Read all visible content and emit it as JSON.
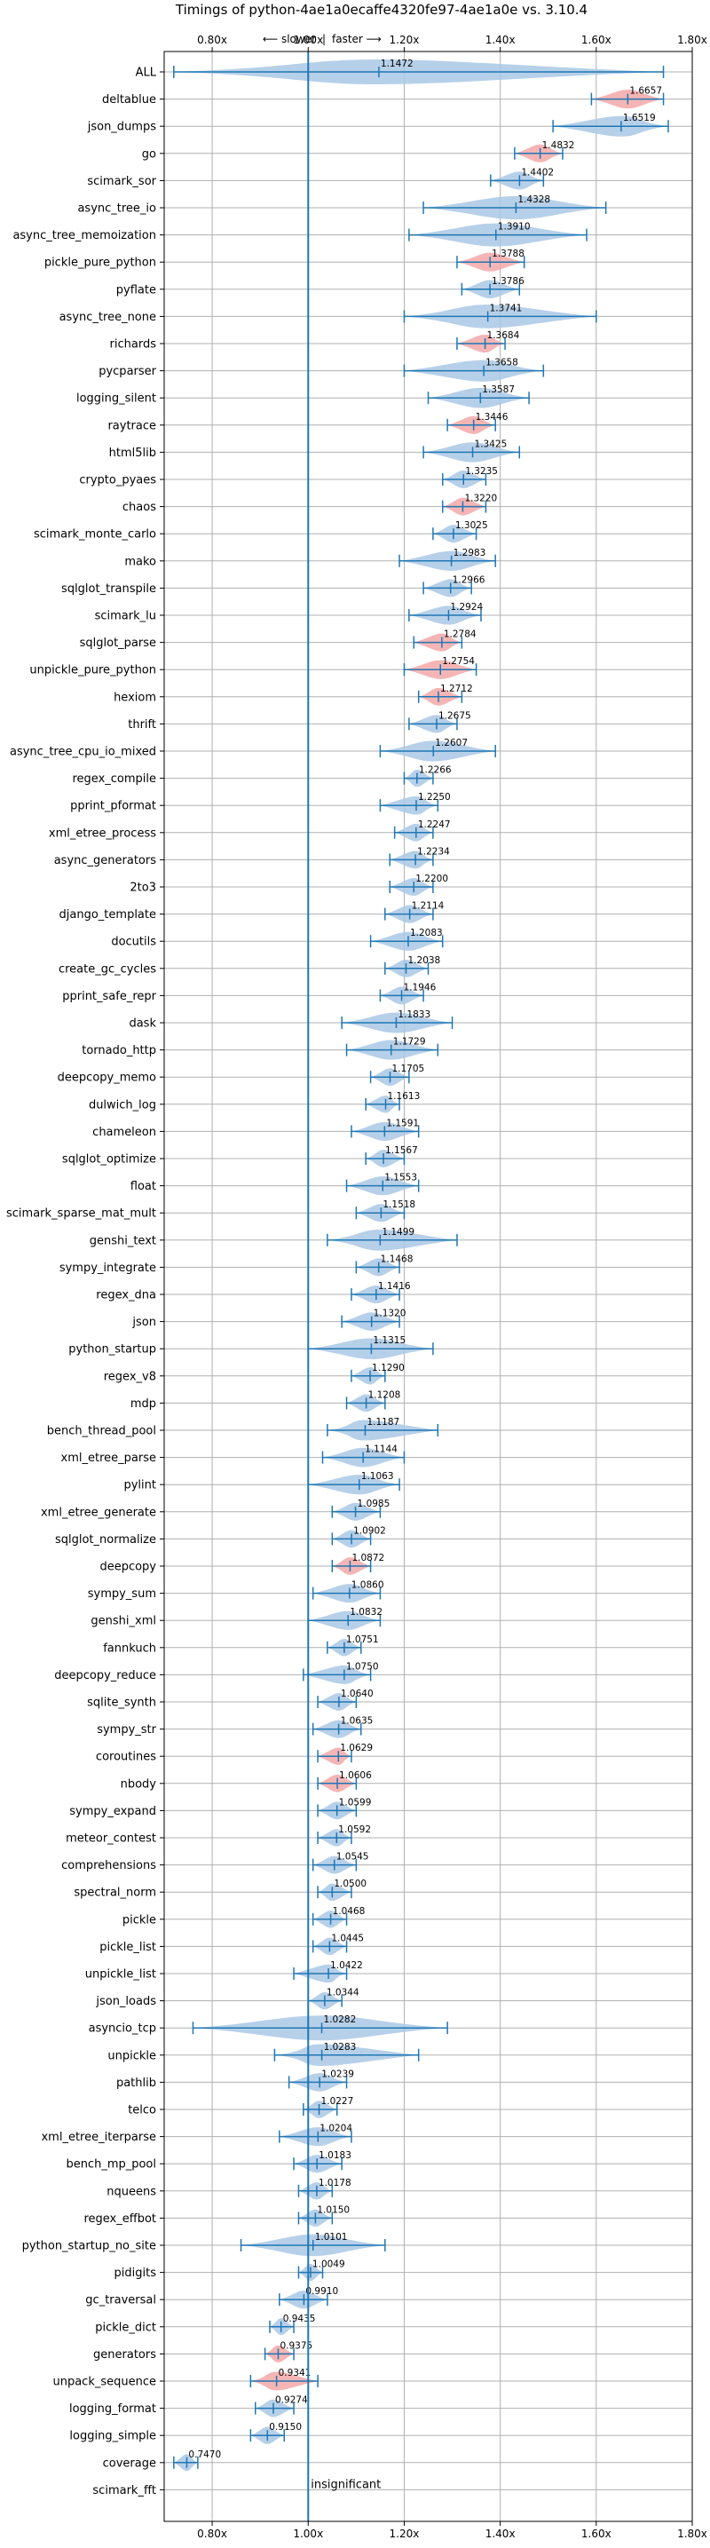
{
  "chart_data": {
    "type": "violin",
    "title": "Timings of python-4ae1a0ecaffe4320fe97-4ae1a0e vs. 3.10.4",
    "x_ticks": [
      "0.80x",
      "1.00x",
      "1.20x",
      "1.40x",
      "1.60x",
      "1.80x"
    ],
    "x_tick_values": [
      0.8,
      1.0,
      1.2,
      1.4,
      1.6,
      1.8
    ],
    "xlim": [
      0.7,
      1.8
    ],
    "slower_label": "⟵ slower",
    "faster_label": "faster ⟶",
    "separator": "|",
    "insignificant_label": "insignificant",
    "grid": true,
    "colors": {
      "faster": "#aac8e5",
      "slower": "#f3a8a8",
      "line": "#1f77b4"
    },
    "benchmarks": [
      {
        "name": "ALL",
        "value": "1.1472",
        "mean": 1.1472,
        "lo": 0.72,
        "hi": 1.74,
        "slower": false
      },
      {
        "name": "deltablue",
        "value": "1.6657",
        "mean": 1.6657,
        "lo": 1.59,
        "hi": 1.74,
        "slower": true
      },
      {
        "name": "json_dumps",
        "value": "1.6519",
        "mean": 1.6519,
        "lo": 1.51,
        "hi": 1.75,
        "slower": false
      },
      {
        "name": "go",
        "value": "1.4832",
        "mean": 1.4832,
        "lo": 1.43,
        "hi": 1.53,
        "slower": true
      },
      {
        "name": "scimark_sor",
        "value": "1.4402",
        "mean": 1.4402,
        "lo": 1.38,
        "hi": 1.49,
        "slower": false
      },
      {
        "name": "async_tree_io",
        "value": "1.4328",
        "mean": 1.4328,
        "lo": 1.24,
        "hi": 1.62,
        "slower": false
      },
      {
        "name": "async_tree_memoization",
        "value": "1.3910",
        "mean": 1.391,
        "lo": 1.21,
        "hi": 1.58,
        "slower": false
      },
      {
        "name": "pickle_pure_python",
        "value": "1.3788",
        "mean": 1.3788,
        "lo": 1.31,
        "hi": 1.45,
        "slower": true
      },
      {
        "name": "pyflate",
        "value": "1.3786",
        "mean": 1.3786,
        "lo": 1.32,
        "hi": 1.44,
        "slower": false
      },
      {
        "name": "async_tree_none",
        "value": "1.3741",
        "mean": 1.3741,
        "lo": 1.2,
        "hi": 1.6,
        "slower": false
      },
      {
        "name": "richards",
        "value": "1.3684",
        "mean": 1.3684,
        "lo": 1.31,
        "hi": 1.41,
        "slower": true
      },
      {
        "name": "pycparser",
        "value": "1.3658",
        "mean": 1.3658,
        "lo": 1.2,
        "hi": 1.49,
        "slower": false
      },
      {
        "name": "logging_silent",
        "value": "1.3587",
        "mean": 1.3587,
        "lo": 1.25,
        "hi": 1.46,
        "slower": false
      },
      {
        "name": "raytrace",
        "value": "1.3446",
        "mean": 1.3446,
        "lo": 1.29,
        "hi": 1.39,
        "slower": true
      },
      {
        "name": "html5lib",
        "value": "1.3425",
        "mean": 1.3425,
        "lo": 1.24,
        "hi": 1.44,
        "slower": false
      },
      {
        "name": "crypto_pyaes",
        "value": "1.3235",
        "mean": 1.3235,
        "lo": 1.28,
        "hi": 1.37,
        "slower": false
      },
      {
        "name": "chaos",
        "value": "1.3220",
        "mean": 1.322,
        "lo": 1.28,
        "hi": 1.37,
        "slower": true
      },
      {
        "name": "scimark_monte_carlo",
        "value": "1.3025",
        "mean": 1.3025,
        "lo": 1.26,
        "hi": 1.35,
        "slower": false
      },
      {
        "name": "mako",
        "value": "1.2983",
        "mean": 1.2983,
        "lo": 1.19,
        "hi": 1.39,
        "slower": false
      },
      {
        "name": "sqlglot_transpile",
        "value": "1.2966",
        "mean": 1.2966,
        "lo": 1.24,
        "hi": 1.34,
        "slower": false
      },
      {
        "name": "scimark_lu",
        "value": "1.2924",
        "mean": 1.2924,
        "lo": 1.21,
        "hi": 1.36,
        "slower": false
      },
      {
        "name": "sqlglot_parse",
        "value": "1.2784",
        "mean": 1.2784,
        "lo": 1.22,
        "hi": 1.32,
        "slower": true
      },
      {
        "name": "unpickle_pure_python",
        "value": "1.2754",
        "mean": 1.2754,
        "lo": 1.2,
        "hi": 1.35,
        "slower": true
      },
      {
        "name": "hexiom",
        "value": "1.2712",
        "mean": 1.2712,
        "lo": 1.23,
        "hi": 1.32,
        "slower": true
      },
      {
        "name": "thrift",
        "value": "1.2675",
        "mean": 1.2675,
        "lo": 1.21,
        "hi": 1.31,
        "slower": false
      },
      {
        "name": "async_tree_cpu_io_mixed",
        "value": "1.2607",
        "mean": 1.2607,
        "lo": 1.15,
        "hi": 1.39,
        "slower": false
      },
      {
        "name": "regex_compile",
        "value": "1.2266",
        "mean": 1.2266,
        "lo": 1.2,
        "hi": 1.26,
        "slower": false
      },
      {
        "name": "pprint_pformat",
        "value": "1.2250",
        "mean": 1.225,
        "lo": 1.15,
        "hi": 1.27,
        "slower": false
      },
      {
        "name": "xml_etree_process",
        "value": "1.2247",
        "mean": 1.2247,
        "lo": 1.18,
        "hi": 1.26,
        "slower": false
      },
      {
        "name": "async_generators",
        "value": "1.2234",
        "mean": 1.2234,
        "lo": 1.17,
        "hi": 1.26,
        "slower": false
      },
      {
        "name": "2to3",
        "value": "1.2200",
        "mean": 1.22,
        "lo": 1.17,
        "hi": 1.26,
        "slower": false
      },
      {
        "name": "django_template",
        "value": "1.2114",
        "mean": 1.2114,
        "lo": 1.16,
        "hi": 1.26,
        "slower": false
      },
      {
        "name": "docutils",
        "value": "1.2083",
        "mean": 1.2083,
        "lo": 1.13,
        "hi": 1.28,
        "slower": false
      },
      {
        "name": "create_gc_cycles",
        "value": "1.2038",
        "mean": 1.2038,
        "lo": 1.16,
        "hi": 1.25,
        "slower": false
      },
      {
        "name": "pprint_safe_repr",
        "value": "1.1946",
        "mean": 1.1946,
        "lo": 1.15,
        "hi": 1.24,
        "slower": false
      },
      {
        "name": "dask",
        "value": "1.1833",
        "mean": 1.1833,
        "lo": 1.07,
        "hi": 1.3,
        "slower": false
      },
      {
        "name": "tornado_http",
        "value": "1.1729",
        "mean": 1.1729,
        "lo": 1.08,
        "hi": 1.27,
        "slower": false
      },
      {
        "name": "deepcopy_memo",
        "value": "1.1705",
        "mean": 1.1705,
        "lo": 1.13,
        "hi": 1.21,
        "slower": false
      },
      {
        "name": "dulwich_log",
        "value": "1.1613",
        "mean": 1.1613,
        "lo": 1.12,
        "hi": 1.19,
        "slower": false
      },
      {
        "name": "chameleon",
        "value": "1.1591",
        "mean": 1.1591,
        "lo": 1.09,
        "hi": 1.23,
        "slower": false
      },
      {
        "name": "sqlglot_optimize",
        "value": "1.1567",
        "mean": 1.1567,
        "lo": 1.12,
        "hi": 1.2,
        "slower": false
      },
      {
        "name": "float",
        "value": "1.1553",
        "mean": 1.1553,
        "lo": 1.08,
        "hi": 1.23,
        "slower": false
      },
      {
        "name": "scimark_sparse_mat_mult",
        "value": "1.1518",
        "mean": 1.1518,
        "lo": 1.1,
        "hi": 1.2,
        "slower": false
      },
      {
        "name": "genshi_text",
        "value": "1.1499",
        "mean": 1.1499,
        "lo": 1.04,
        "hi": 1.31,
        "slower": false
      },
      {
        "name": "sympy_integrate",
        "value": "1.1468",
        "mean": 1.1468,
        "lo": 1.1,
        "hi": 1.19,
        "slower": false
      },
      {
        "name": "regex_dna",
        "value": "1.1416",
        "mean": 1.1416,
        "lo": 1.09,
        "hi": 1.19,
        "slower": false
      },
      {
        "name": "json",
        "value": "1.1320",
        "mean": 1.132,
        "lo": 1.07,
        "hi": 1.19,
        "slower": false
      },
      {
        "name": "python_startup",
        "value": "1.1315",
        "mean": 1.1315,
        "lo": 1.0,
        "hi": 1.26,
        "slower": false
      },
      {
        "name": "regex_v8",
        "value": "1.1290",
        "mean": 1.129,
        "lo": 1.09,
        "hi": 1.16,
        "slower": false
      },
      {
        "name": "mdp",
        "value": "1.1208",
        "mean": 1.1208,
        "lo": 1.08,
        "hi": 1.16,
        "slower": false
      },
      {
        "name": "bench_thread_pool",
        "value": "1.1187",
        "mean": 1.1187,
        "lo": 1.04,
        "hi": 1.27,
        "slower": false
      },
      {
        "name": "xml_etree_parse",
        "value": "1.1144",
        "mean": 1.1144,
        "lo": 1.03,
        "hi": 1.2,
        "slower": false
      },
      {
        "name": "pylint",
        "value": "1.1063",
        "mean": 1.1063,
        "lo": 1.0,
        "hi": 1.19,
        "slower": false
      },
      {
        "name": "xml_etree_generate",
        "value": "1.0985",
        "mean": 1.0985,
        "lo": 1.05,
        "hi": 1.15,
        "slower": false
      },
      {
        "name": "sqlglot_normalize",
        "value": "1.0902",
        "mean": 1.0902,
        "lo": 1.05,
        "hi": 1.13,
        "slower": false
      },
      {
        "name": "deepcopy",
        "value": "1.0872",
        "mean": 1.0872,
        "lo": 1.05,
        "hi": 1.13,
        "slower": true
      },
      {
        "name": "sympy_sum",
        "value": "1.0860",
        "mean": 1.086,
        "lo": 1.01,
        "hi": 1.15,
        "slower": false
      },
      {
        "name": "genshi_xml",
        "value": "1.0832",
        "mean": 1.0832,
        "lo": 1.0,
        "hi": 1.15,
        "slower": false
      },
      {
        "name": "fannkuch",
        "value": "1.0751",
        "mean": 1.0751,
        "lo": 1.04,
        "hi": 1.11,
        "slower": false
      },
      {
        "name": "deepcopy_reduce",
        "value": "1.0750",
        "mean": 1.075,
        "lo": 0.99,
        "hi": 1.13,
        "slower": false
      },
      {
        "name": "sqlite_synth",
        "value": "1.0640",
        "mean": 1.064,
        "lo": 1.02,
        "hi": 1.1,
        "slower": false
      },
      {
        "name": "sympy_str",
        "value": "1.0635",
        "mean": 1.0635,
        "lo": 1.01,
        "hi": 1.11,
        "slower": false
      },
      {
        "name": "coroutines",
        "value": "1.0629",
        "mean": 1.0629,
        "lo": 1.02,
        "hi": 1.09,
        "slower": true
      },
      {
        "name": "nbody",
        "value": "1.0606",
        "mean": 1.0606,
        "lo": 1.02,
        "hi": 1.1,
        "slower": true
      },
      {
        "name": "sympy_expand",
        "value": "1.0599",
        "mean": 1.0599,
        "lo": 1.02,
        "hi": 1.1,
        "slower": false
      },
      {
        "name": "meteor_contest",
        "value": "1.0592",
        "mean": 1.0592,
        "lo": 1.02,
        "hi": 1.09,
        "slower": false
      },
      {
        "name": "comprehensions",
        "value": "1.0545",
        "mean": 1.0545,
        "lo": 1.01,
        "hi": 1.1,
        "slower": false
      },
      {
        "name": "spectral_norm",
        "value": "1.0500",
        "mean": 1.05,
        "lo": 1.02,
        "hi": 1.09,
        "slower": false
      },
      {
        "name": "pickle",
        "value": "1.0468",
        "mean": 1.0468,
        "lo": 1.01,
        "hi": 1.08,
        "slower": false
      },
      {
        "name": "pickle_list",
        "value": "1.0445",
        "mean": 1.0445,
        "lo": 1.01,
        "hi": 1.08,
        "slower": false
      },
      {
        "name": "unpickle_list",
        "value": "1.0422",
        "mean": 1.0422,
        "lo": 0.97,
        "hi": 1.08,
        "slower": false
      },
      {
        "name": "json_loads",
        "value": "1.0344",
        "mean": 1.0344,
        "lo": 1.0,
        "hi": 1.07,
        "slower": false
      },
      {
        "name": "asyncio_tcp",
        "value": "1.0282",
        "mean": 1.0282,
        "lo": 0.76,
        "hi": 1.29,
        "slower": false
      },
      {
        "name": "unpickle",
        "value": "1.0283",
        "mean": 1.0283,
        "lo": 0.93,
        "hi": 1.23,
        "slower": false
      },
      {
        "name": "pathlib",
        "value": "1.0239",
        "mean": 1.0239,
        "lo": 0.96,
        "hi": 1.08,
        "slower": false
      },
      {
        "name": "telco",
        "value": "1.0227",
        "mean": 1.0227,
        "lo": 0.99,
        "hi": 1.06,
        "slower": false
      },
      {
        "name": "xml_etree_iterparse",
        "value": "1.0204",
        "mean": 1.0204,
        "lo": 0.94,
        "hi": 1.09,
        "slower": false
      },
      {
        "name": "bench_mp_pool",
        "value": "1.0183",
        "mean": 1.0183,
        "lo": 0.97,
        "hi": 1.07,
        "slower": false
      },
      {
        "name": "nqueens",
        "value": "1.0178",
        "mean": 1.0178,
        "lo": 0.98,
        "hi": 1.05,
        "slower": false
      },
      {
        "name": "regex_effbot",
        "value": "1.0150",
        "mean": 1.015,
        "lo": 0.98,
        "hi": 1.05,
        "slower": false
      },
      {
        "name": "python_startup_no_site",
        "value": "1.0101",
        "mean": 1.0101,
        "lo": 0.86,
        "hi": 1.16,
        "slower": false
      },
      {
        "name": "pidigits",
        "value": "1.0049",
        "mean": 1.0049,
        "lo": 0.98,
        "hi": 1.03,
        "slower": false
      },
      {
        "name": "gc_traversal",
        "value": "0.9910",
        "mean": 0.991,
        "lo": 0.94,
        "hi": 1.04,
        "slower": false
      },
      {
        "name": "pickle_dict",
        "value": "0.9435",
        "mean": 0.9435,
        "lo": 0.92,
        "hi": 0.97,
        "slower": false
      },
      {
        "name": "generators",
        "value": "0.9375",
        "mean": 0.9375,
        "lo": 0.91,
        "hi": 0.97,
        "slower": true
      },
      {
        "name": "unpack_sequence",
        "value": "0.9341",
        "mean": 0.9341,
        "lo": 0.88,
        "hi": 1.02,
        "slower": true
      },
      {
        "name": "logging_format",
        "value": "0.9274",
        "mean": 0.9274,
        "lo": 0.89,
        "hi": 0.97,
        "slower": false
      },
      {
        "name": "logging_simple",
        "value": "0.9150",
        "mean": 0.915,
        "lo": 0.88,
        "hi": 0.95,
        "slower": false
      },
      {
        "name": "coverage",
        "value": "0.7470",
        "mean": 0.747,
        "lo": 0.72,
        "hi": 0.77,
        "slower": false
      },
      {
        "name": "scimark_fft",
        "value": "",
        "mean": null,
        "lo": null,
        "hi": null,
        "slower": false
      }
    ]
  }
}
